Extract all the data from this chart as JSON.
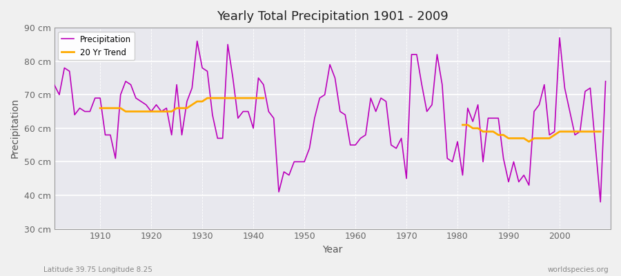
{
  "title": "Yearly Total Precipitation 1901 - 2009",
  "xlabel": "Year",
  "ylabel": "Precipitation",
  "fig_bg_color": "#f0f0f0",
  "plot_bg_color": "#e8e8ee",
  "precip_color": "#bb00bb",
  "trend_color": "#ffaa00",
  "ylim": [
    30,
    90
  ],
  "xlim": [
    1901,
    2010
  ],
  "yticks": [
    30,
    40,
    50,
    60,
    70,
    80,
    90
  ],
  "ytick_labels": [
    "30 cm",
    "40 cm",
    "50 cm",
    "60 cm",
    "70 cm",
    "80 cm",
    "90 cm"
  ],
  "xticks": [
    1910,
    1920,
    1930,
    1940,
    1950,
    1960,
    1970,
    1980,
    1990,
    2000
  ],
  "years": [
    1901,
    1902,
    1903,
    1904,
    1905,
    1906,
    1907,
    1908,
    1909,
    1910,
    1911,
    1912,
    1913,
    1914,
    1915,
    1916,
    1917,
    1918,
    1919,
    1920,
    1921,
    1922,
    1923,
    1924,
    1925,
    1926,
    1927,
    1928,
    1929,
    1930,
    1931,
    1932,
    1933,
    1934,
    1935,
    1936,
    1937,
    1938,
    1939,
    1940,
    1941,
    1942,
    1943,
    1944,
    1945,
    1946,
    1947,
    1948,
    1949,
    1950,
    1951,
    1952,
    1953,
    1954,
    1955,
    1956,
    1957,
    1958,
    1959,
    1960,
    1961,
    1962,
    1963,
    1964,
    1965,
    1966,
    1967,
    1968,
    1969,
    1970,
    1971,
    1972,
    1973,
    1974,
    1975,
    1976,
    1977,
    1978,
    1979,
    1980,
    1981,
    1982,
    1983,
    1984,
    1985,
    1986,
    1987,
    1988,
    1989,
    1990,
    1991,
    1992,
    1993,
    1994,
    1995,
    1996,
    1997,
    1998,
    1999,
    2000,
    2001,
    2002,
    2003,
    2004,
    2005,
    2006,
    2007,
    2008,
    2009
  ],
  "precip": [
    73,
    70,
    78,
    77,
    64,
    66,
    65,
    65,
    69,
    69,
    58,
    58,
    51,
    70,
    74,
    73,
    69,
    68,
    67,
    65,
    67,
    65,
    66,
    58,
    73,
    58,
    68,
    72,
    86,
    78,
    77,
    64,
    57,
    57,
    85,
    75,
    63,
    65,
    65,
    60,
    75,
    73,
    65,
    63,
    41,
    47,
    46,
    50,
    50,
    50,
    54,
    63,
    69,
    70,
    79,
    75,
    65,
    64,
    55,
    55,
    57,
    58,
    69,
    65,
    69,
    68,
    55,
    54,
    57,
    45,
    82,
    82,
    73,
    65,
    67,
    82,
    73,
    51,
    50,
    56,
    46,
    66,
    62,
    67,
    50,
    63,
    63,
    63,
    51,
    44,
    50,
    44,
    46,
    43,
    65,
    67,
    73,
    58,
    59,
    87,
    72,
    65,
    58,
    59,
    71,
    72,
    55,
    38,
    74
  ],
  "trend_seg1_years": [
    1910,
    1911,
    1912,
    1913,
    1914,
    1915,
    1916,
    1917,
    1918,
    1919,
    1920,
    1921,
    1922,
    1923,
    1924,
    1925,
    1926,
    1927,
    1928,
    1929,
    1930,
    1931,
    1932,
    1933,
    1934,
    1935,
    1936,
    1937,
    1938,
    1939,
    1940,
    1941,
    1942
  ],
  "trend_seg1": [
    66,
    66,
    66,
    66,
    66,
    65,
    65,
    65,
    65,
    65,
    65,
    65,
    65,
    65,
    65,
    66,
    66,
    66,
    67,
    68,
    68,
    69,
    69,
    69,
    69,
    69,
    69,
    69,
    69,
    69,
    69,
    69,
    69
  ],
  "trend_seg2_years": [
    1981,
    1982,
    1983,
    1984,
    1985,
    1986,
    1987,
    1988,
    1989,
    1990,
    1991,
    1992,
    1993,
    1994,
    1995,
    1996,
    1997,
    1998,
    1999,
    2000,
    2001,
    2002,
    2003,
    2004,
    2005,
    2006,
    2007,
    2008
  ],
  "trend_seg2": [
    61,
    61,
    60,
    60,
    59,
    59,
    59,
    58,
    58,
    57,
    57,
    57,
    57,
    56,
    57,
    57,
    57,
    57,
    58,
    59,
    59,
    59,
    59,
    59,
    59,
    59,
    59,
    59
  ],
  "footer_left": "Latitude 39.75 Longitude 8.25",
  "footer_right": "worldspecies.org"
}
